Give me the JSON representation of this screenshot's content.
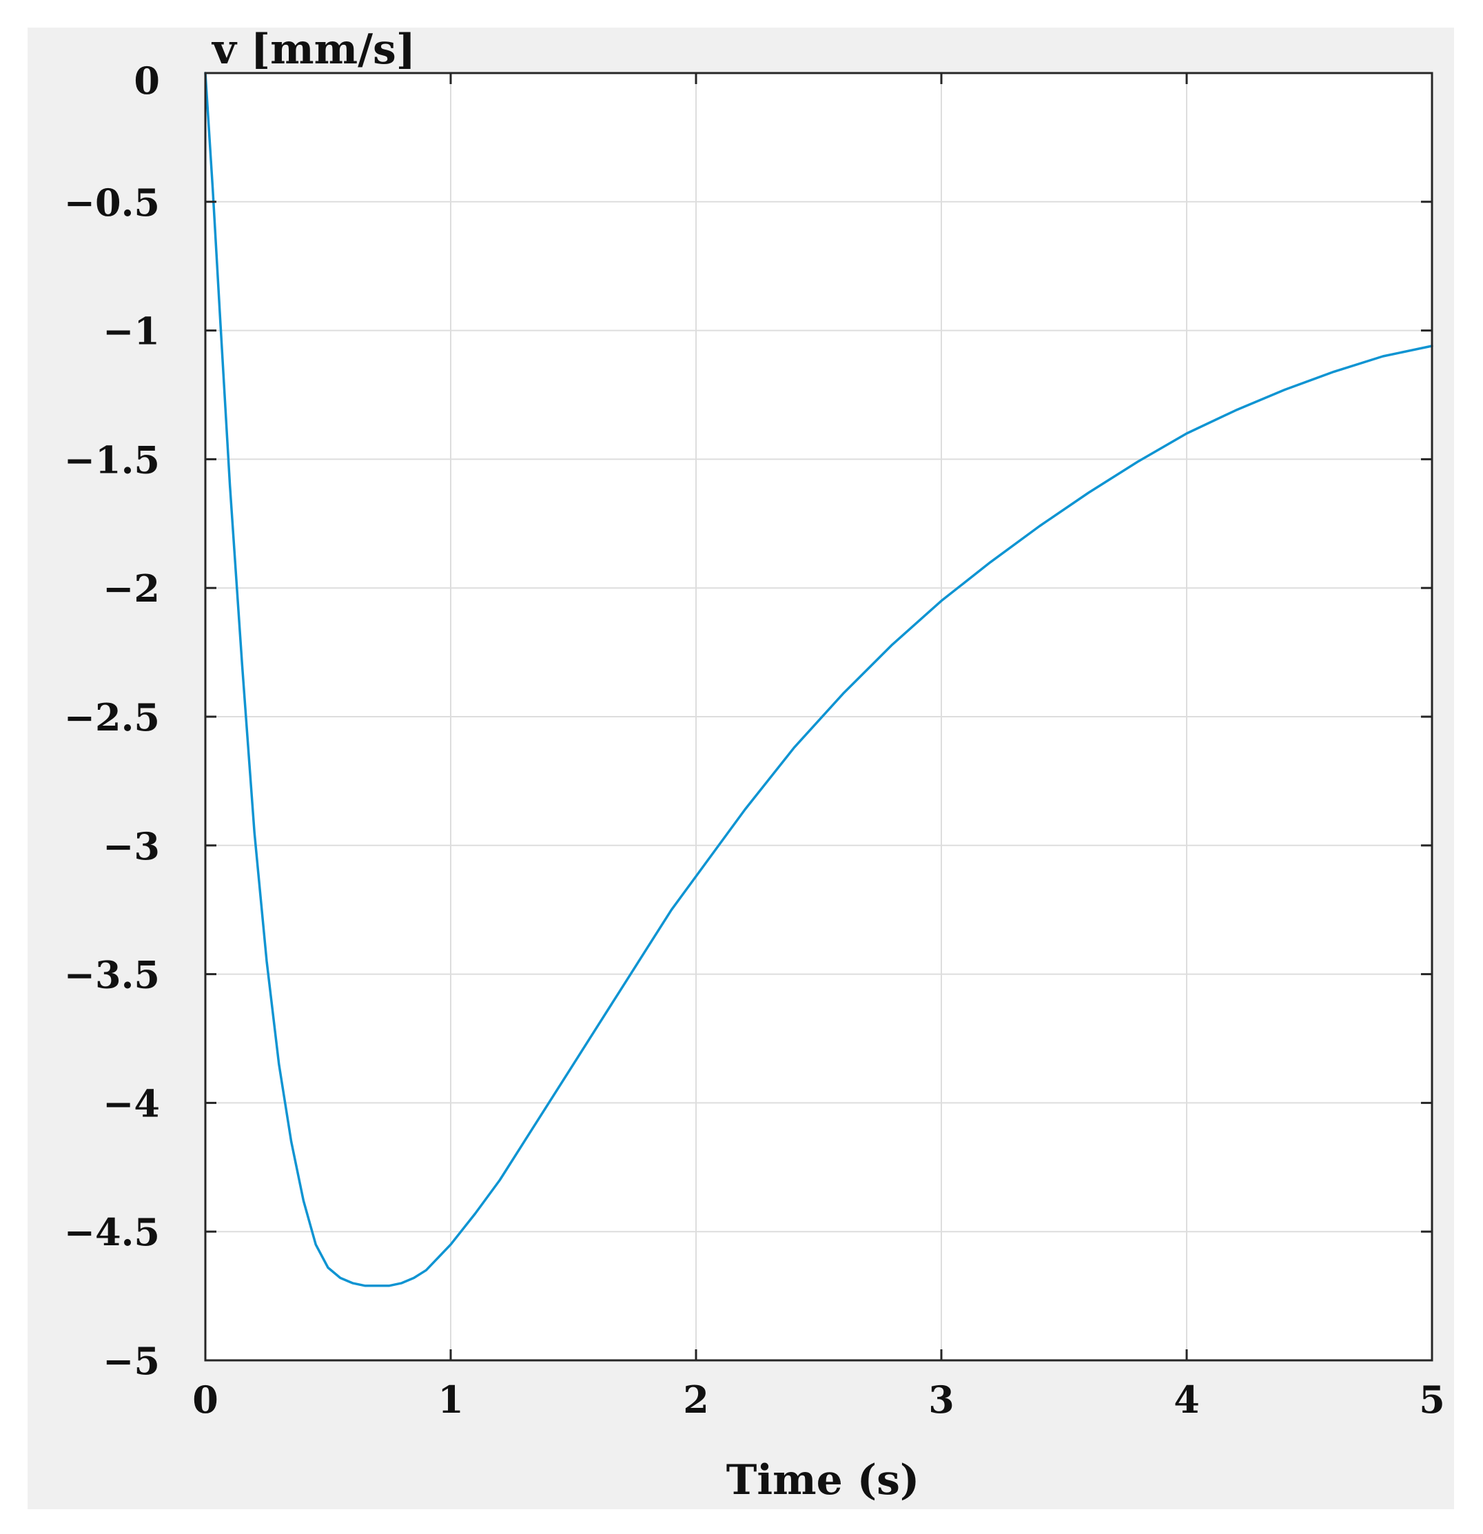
{
  "colors": {
    "figure_background": "#f0f0f0",
    "axes_background": "#ffffff",
    "grid": "#dddddd",
    "axis_frame": "#262626",
    "series": "#0f94d2"
  },
  "chart_data": {
    "type": "line",
    "title": "",
    "xlabel": "Time (s)",
    "ylabel": "v [mm/s]",
    "xlim": [
      0,
      5
    ],
    "ylim": [
      -5,
      0
    ],
    "grid": true,
    "x_ticks": [
      0,
      1,
      2,
      3,
      4,
      5
    ],
    "y_ticks": [
      0,
      -0.5,
      -1,
      -1.5,
      -2,
      -2.5,
      -3,
      -3.5,
      -4,
      -4.5,
      -5
    ],
    "x_tick_labels": [
      "0",
      "1",
      "2",
      "3",
      "4",
      "5"
    ],
    "y_tick_labels": [
      "0",
      "−0.5",
      "−1",
      "−1.5",
      "−2",
      "−2.5",
      "−3",
      "−3.5",
      "−4",
      "−4.5",
      "−5"
    ],
    "series": [
      {
        "x": [
          0,
          0.03,
          0.06,
          0.1,
          0.15,
          0.2,
          0.25,
          0.3,
          0.35,
          0.4,
          0.45,
          0.5,
          0.55,
          0.6,
          0.65,
          0.7,
          0.75,
          0.8,
          0.85,
          0.9,
          1.0,
          1.1,
          1.2,
          1.3,
          1.4,
          1.5,
          1.6,
          1.7,
          1.8,
          1.9,
          2.0,
          2.2,
          2.4,
          2.6,
          2.8,
          3.0,
          3.2,
          3.4,
          3.6,
          3.8,
          4.0,
          4.2,
          4.4,
          4.6,
          4.8,
          5.0
        ],
        "y": [
          0,
          -0.45,
          -0.95,
          -1.6,
          -2.3,
          -2.95,
          -3.45,
          -3.85,
          -4.15,
          -4.38,
          -4.55,
          -4.64,
          -4.68,
          -4.7,
          -4.71,
          -4.71,
          -4.71,
          -4.7,
          -4.68,
          -4.65,
          -4.55,
          -4.43,
          -4.3,
          -4.15,
          -4.0,
          -3.85,
          -3.7,
          -3.55,
          -3.4,
          -3.25,
          -3.12,
          -2.86,
          -2.62,
          -2.41,
          -2.22,
          -2.05,
          -1.9,
          -1.76,
          -1.63,
          -1.51,
          -1.4,
          -1.31,
          -1.23,
          -1.16,
          -1.1,
          -1.06
        ]
      }
    ]
  }
}
